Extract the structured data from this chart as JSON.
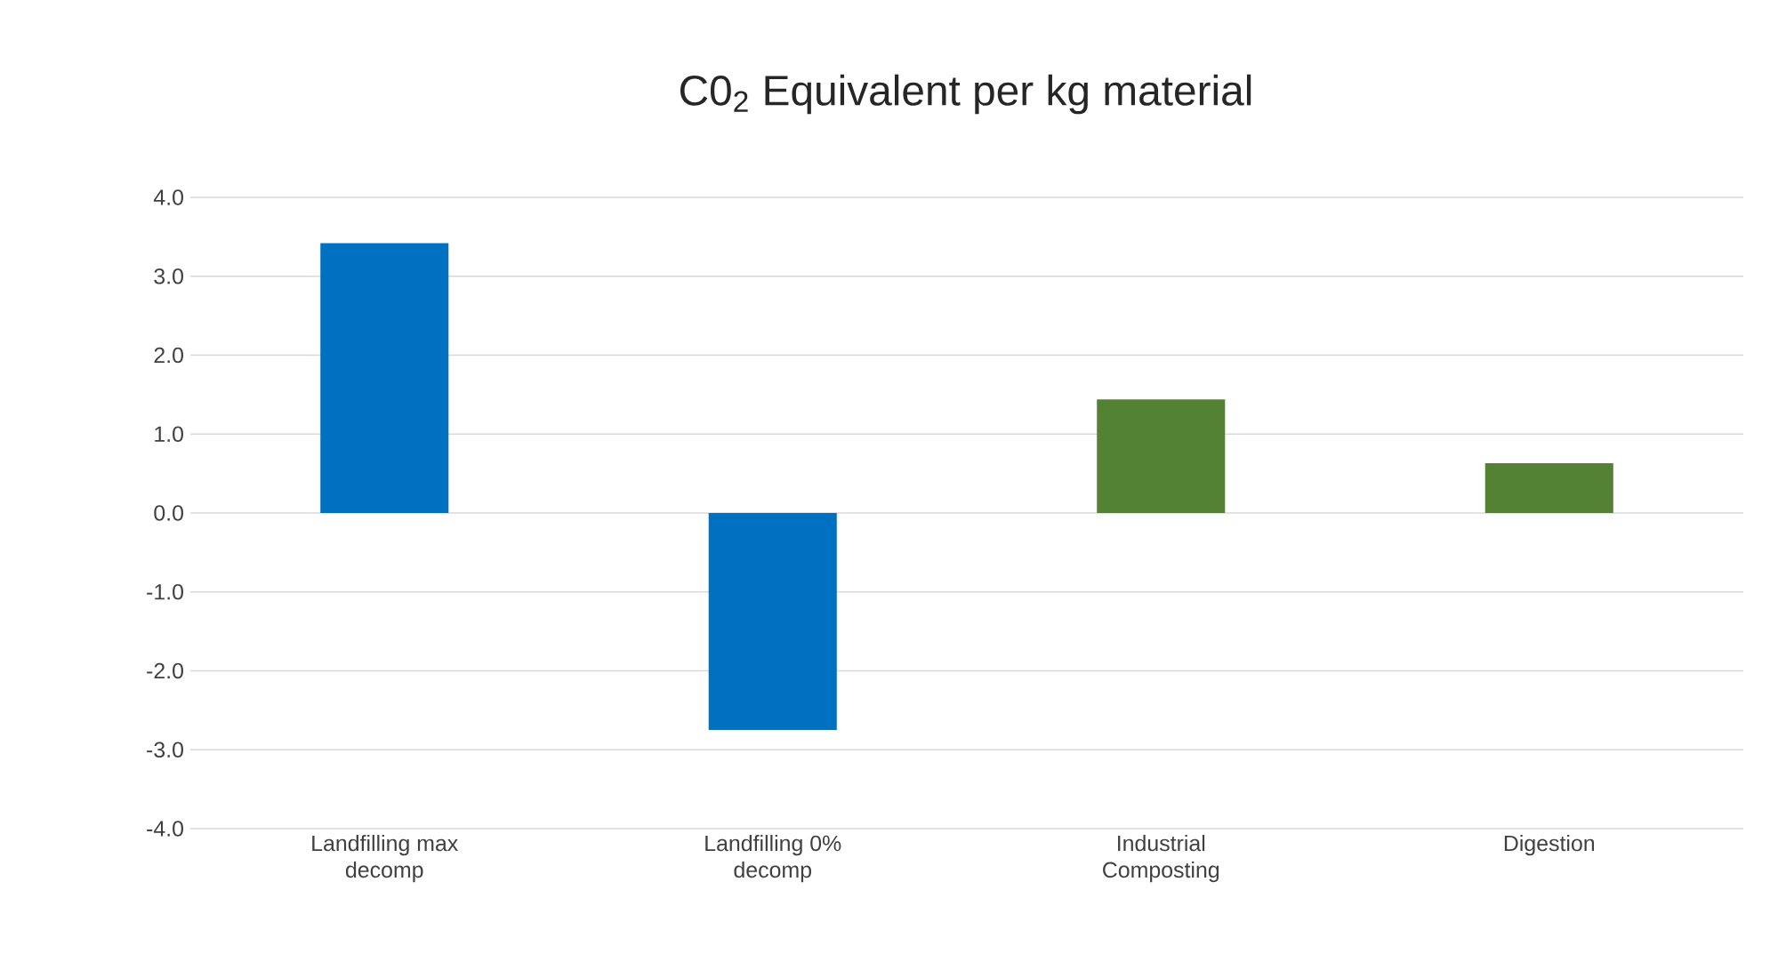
{
  "chart_data": {
    "type": "bar",
    "title": "C0$_{2}$ Equivalent per kg material",
    "categories": [
      "Landfilling max decomp",
      "Landfilling 0% decomp",
      "Industrial Composting",
      "Digestion"
    ],
    "values": [
      3.42,
      -2.75,
      1.44,
      0.63
    ],
    "colors": [
      "#0070c0",
      "#0070c0",
      "#548235",
      "#548235"
    ],
    "ylim": [
      -4,
      4
    ],
    "yticks": [
      {
        "value": -4,
        "label": "-4.0"
      },
      {
        "value": -3,
        "label": "-3.0"
      },
      {
        "value": -2,
        "label": "-2.0"
      },
      {
        "value": -1,
        "label": "-1.0"
      },
      {
        "value": 0,
        "label": "0.0"
      },
      {
        "value": 1,
        "label": "1.0"
      },
      {
        "value": 2,
        "label": "2.0"
      },
      {
        "value": 3,
        "label": "3.0"
      },
      {
        "value": 4,
        "label": "4.0"
      }
    ],
    "grid": "y"
  }
}
